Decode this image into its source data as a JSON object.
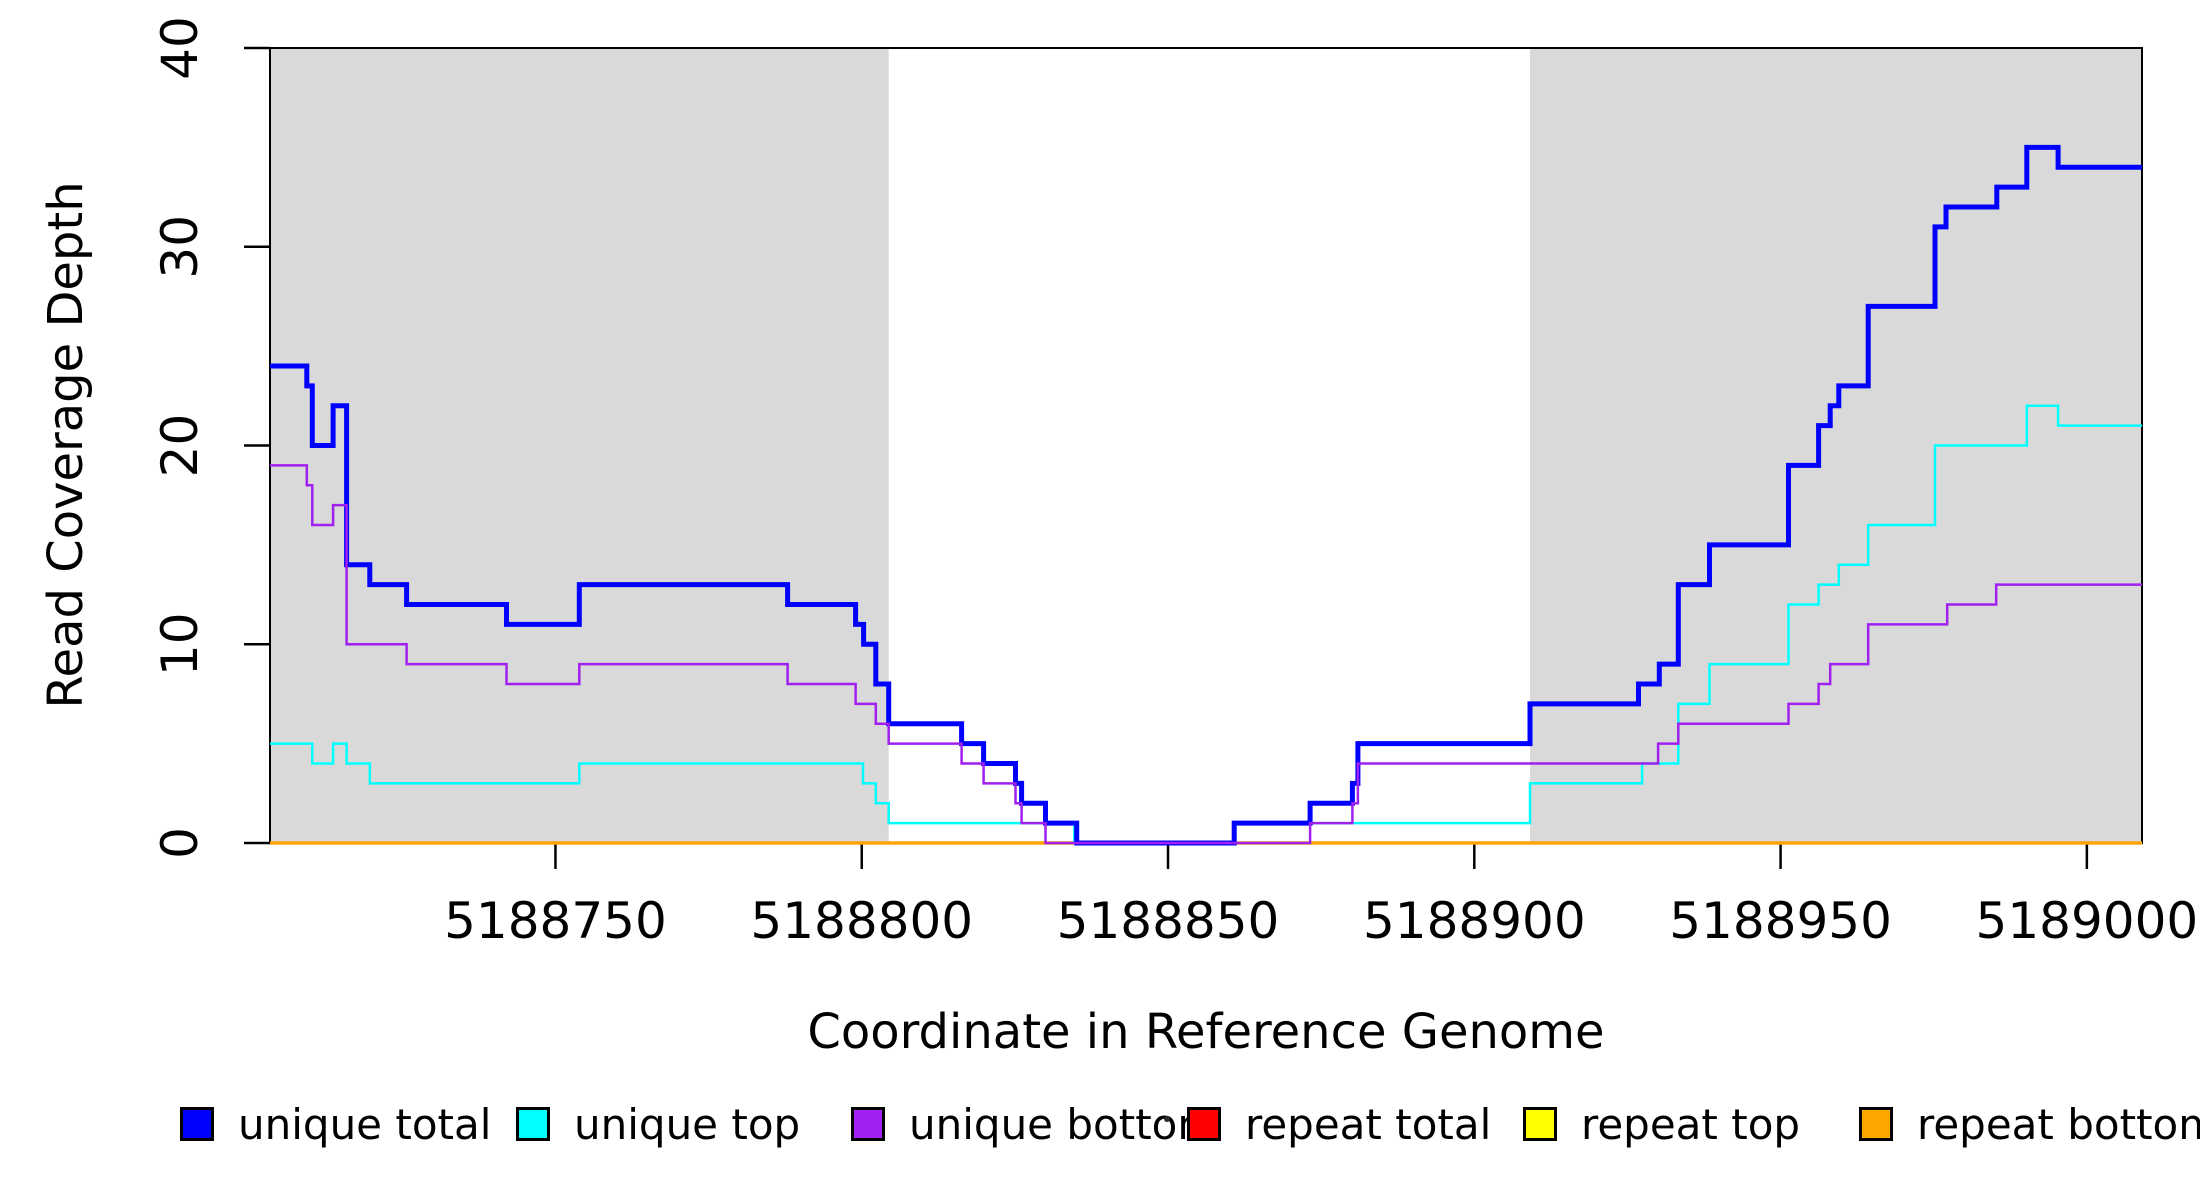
{
  "page": {
    "background": "#FFFFFF"
  },
  "chart_data": {
    "type": "line",
    "subtype": "step",
    "title": "",
    "xlabel": "Coordinate in Reference Genome",
    "ylabel": "Read Coverage Depth",
    "xlim": [
      5188703.4,
      5189009.0
    ],
    "ylim": [
      0,
      40
    ],
    "x_end": 5189009.0,
    "x_ticks": [
      5188750,
      5188800,
      5188850,
      5188900,
      5188950,
      5189000
    ],
    "y_ticks": [
      0,
      10,
      20,
      30,
      40
    ],
    "grid": false,
    "legend_position": "bottom",
    "shaded_regions": {
      "color": "#D9D9D9",
      "ranges": [
        [
          5188703.4,
          5188804.4
        ],
        [
          5188909.1,
          5189009.0
        ]
      ]
    },
    "series": [
      {
        "name": "unique total",
        "color": "#0000FF",
        "line_width": 5,
        "steps": [
          [
            5188703.4,
            24
          ],
          [
            5188709.4,
            23
          ],
          [
            5188710.3,
            20
          ],
          [
            5188713.7,
            22
          ],
          [
            5188715.9,
            14
          ],
          [
            5188719.7,
            13
          ],
          [
            5188725.7,
            12
          ],
          [
            5188742.0,
            11
          ],
          [
            5188753.9,
            13
          ],
          [
            5188787.9,
            12
          ],
          [
            5188799.0,
            11
          ],
          [
            5188800.3,
            10
          ],
          [
            5188802.3,
            8
          ],
          [
            5188804.4,
            6
          ],
          [
            5188816.3,
            5
          ],
          [
            5188819.9,
            4
          ],
          [
            5188825.1,
            3
          ],
          [
            5188826.1,
            2
          ],
          [
            5188830.0,
            1
          ],
          [
            5188835.1,
            0
          ],
          [
            5188860.8,
            1
          ],
          [
            5188873.2,
            2
          ],
          [
            5188880.1,
            3
          ],
          [
            5188881.0,
            5
          ],
          [
            5188909.1,
            7
          ],
          [
            5188926.8,
            8
          ],
          [
            5188930.2,
            9
          ],
          [
            5188933.3,
            13
          ],
          [
            5188938.4,
            15
          ],
          [
            5188951.3,
            19
          ],
          [
            5188956.2,
            21
          ],
          [
            5188958.1,
            22
          ],
          [
            5188959.5,
            23
          ],
          [
            5188964.3,
            27
          ],
          [
            5188975.2,
            31
          ],
          [
            5188977.0,
            32
          ],
          [
            5188985.3,
            33
          ],
          [
            5188990.2,
            35
          ],
          [
            5188995.3,
            34
          ]
        ]
      },
      {
        "name": "unique top",
        "color": "#00FFFF",
        "line_width": 2.5,
        "steps": [
          [
            5188703.4,
            5
          ],
          [
            5188710.3,
            4
          ],
          [
            5188713.7,
            5
          ],
          [
            5188715.9,
            4
          ],
          [
            5188719.7,
            3
          ],
          [
            5188753.9,
            4
          ],
          [
            5188800.2,
            3
          ],
          [
            5188802.3,
            2
          ],
          [
            5188804.4,
            1
          ],
          [
            5188834.7,
            0
          ],
          [
            5188860.8,
            1
          ],
          [
            5188909.1,
            3
          ],
          [
            5188927.4,
            4
          ],
          [
            5188933.3,
            7
          ],
          [
            5188938.4,
            9
          ],
          [
            5188951.3,
            12
          ],
          [
            5188956.2,
            13
          ],
          [
            5188959.5,
            14
          ],
          [
            5188964.3,
            16
          ],
          [
            5188975.2,
            20
          ],
          [
            5188990.2,
            22
          ],
          [
            5188995.3,
            21
          ]
        ]
      },
      {
        "name": "unique bottom",
        "color": "#A020F0",
        "line_width": 2.5,
        "steps": [
          [
            5188703.4,
            19
          ],
          [
            5188709.4,
            18
          ],
          [
            5188710.3,
            16
          ],
          [
            5188713.7,
            17
          ],
          [
            5188715.9,
            10
          ],
          [
            5188725.7,
            9
          ],
          [
            5188742.0,
            8
          ],
          [
            5188753.9,
            9
          ],
          [
            5188787.9,
            8
          ],
          [
            5188799.0,
            7
          ],
          [
            5188802.3,
            6
          ],
          [
            5188804.4,
            5
          ],
          [
            5188816.3,
            4
          ],
          [
            5188819.9,
            3
          ],
          [
            5188825.1,
            2
          ],
          [
            5188826.1,
            1
          ],
          [
            5188830.0,
            0
          ],
          [
            5188873.2,
            1
          ],
          [
            5188880.1,
            2
          ],
          [
            5188881.0,
            4
          ],
          [
            5188930.0,
            5
          ],
          [
            5188933.3,
            6
          ],
          [
            5188951.3,
            7
          ],
          [
            5188956.2,
            8
          ],
          [
            5188958.1,
            9
          ],
          [
            5188964.3,
            11
          ],
          [
            5188977.2,
            12
          ],
          [
            5188985.2,
            13
          ]
        ]
      },
      {
        "name": "repeat total",
        "color": "#FF0000",
        "line_width": 3,
        "steps": [
          [
            5188703.4,
            0
          ]
        ]
      },
      {
        "name": "repeat top",
        "color": "#FFFF00",
        "line_width": 3,
        "steps": [
          [
            5188703.4,
            0
          ]
        ]
      },
      {
        "name": "repeat bottom",
        "color": "#FFA500",
        "line_width": 3.5,
        "steps": [
          [
            5188703.4,
            0
          ]
        ]
      }
    ]
  }
}
